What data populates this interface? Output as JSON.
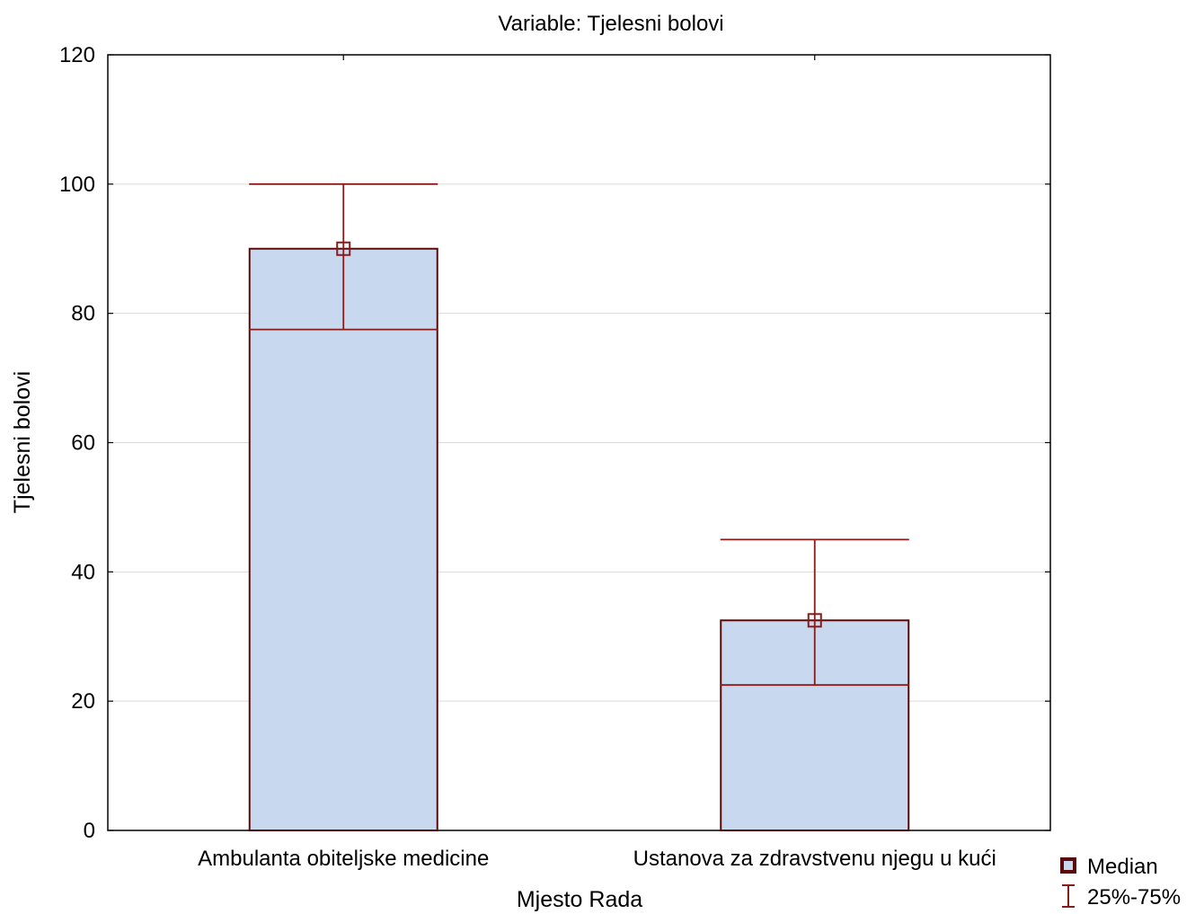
{
  "chart_data": {
    "type": "bar",
    "title": "Variable: Tjelesni bolovi",
    "xlabel": "Mjesto Rada",
    "ylabel": "Tjelesni bolovi",
    "ylim": [
      0,
      120
    ],
    "yticks": [
      "0",
      "20",
      "40",
      "60",
      "80",
      "100",
      "120"
    ],
    "grid": true,
    "categories": [
      "Ambulanta obiteljske medicine",
      "Ustanova za zdravstvenu njegu u kući"
    ],
    "median": [
      90,
      32.5
    ],
    "q25": [
      77.5,
      22.5
    ],
    "q75": [
      100,
      45
    ],
    "legend": {
      "position": "bottom-right",
      "entries": [
        "Median",
        "25%-75%"
      ]
    },
    "colors": {
      "bar_fill": "#c8d8ef",
      "bar_stroke": "#5a0a0a",
      "whisker": "#8b1a1a",
      "grid": "#d9d9d9"
    }
  }
}
